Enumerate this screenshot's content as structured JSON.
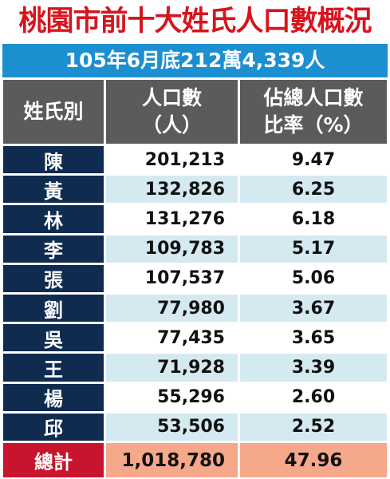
{
  "header": {
    "title": "桃園市前十大姓氏人口數概況",
    "subtitle": "105年6月底212萬4,339人"
  },
  "table": {
    "columns": [
      [
        "姓氏別"
      ],
      [
        "人口數",
        "（人）"
      ],
      [
        "佔總人口數",
        "比率（%）"
      ]
    ],
    "rows": [
      [
        "陳",
        "201,213",
        "9.47"
      ],
      [
        "黃",
        "132,826",
        "6.25"
      ],
      [
        "林",
        "131,276",
        "6.18"
      ],
      [
        "李",
        "109,783",
        "5.17"
      ],
      [
        "張",
        "107,537",
        "5.06"
      ],
      [
        "劉",
        "77,980",
        "3.67"
      ],
      [
        "吳",
        "77,435",
        "3.65"
      ],
      [
        "王",
        "71,928",
        "3.39"
      ],
      [
        "楊",
        "55,296",
        "2.60"
      ],
      [
        "邱",
        "53,506",
        "2.52"
      ]
    ],
    "total": [
      "總計",
      "1,018,780",
      "47.96"
    ]
  }
}
